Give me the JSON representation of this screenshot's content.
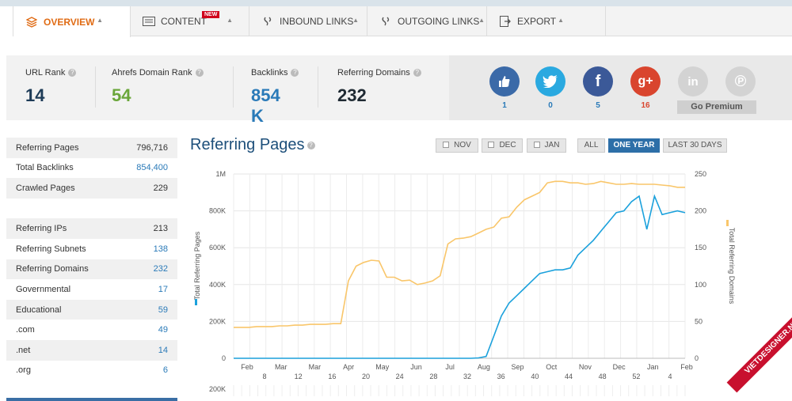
{
  "tabs": [
    {
      "label": "OVERVIEW",
      "icon": "layers-icon",
      "active": true
    },
    {
      "label": "CONTENT",
      "icon": "content-icon",
      "badge": "NEW"
    },
    {
      "label": "INBOUND LINKS",
      "icon": "link-icon"
    },
    {
      "label": "OUTGOING LINKS",
      "icon": "link-icon"
    },
    {
      "label": "EXPORT",
      "icon": "export-icon"
    }
  ],
  "stats": {
    "url_rank": {
      "label": "URL Rank",
      "value": "14"
    },
    "domain_rank": {
      "label": "Ahrefs Domain Rank",
      "value": "54"
    },
    "backlinks": {
      "label": "Backlinks",
      "value": "854 K"
    },
    "ref_domains": {
      "label": "Referring Domains",
      "value": "232"
    }
  },
  "social": [
    {
      "name": "like-icon",
      "count": "1",
      "color": "#3b6aa8"
    },
    {
      "name": "twitter-icon",
      "count": "0",
      "color": "#2aa9e0"
    },
    {
      "name": "facebook-icon",
      "count": "5",
      "color": "#3b5998"
    },
    {
      "name": "googleplus-icon",
      "count": "16",
      "color": "#d9452e"
    },
    {
      "name": "linkedin-icon",
      "count": "",
      "color": "#d3d3d3"
    },
    {
      "name": "pinterest-icon",
      "count": "",
      "color": "#d3d3d3"
    }
  ],
  "premium_label": "Go Premium",
  "sidebar": [
    {
      "label": "Referring Pages",
      "value": "796,716"
    },
    {
      "label": "Total Backlinks",
      "value": "854,400",
      "link": true
    },
    {
      "label": "Crawled Pages",
      "value": "229"
    },
    {
      "label": "",
      "value": ""
    },
    {
      "label": "Referring IPs",
      "value": "213"
    },
    {
      "label": "Referring Subnets",
      "value": "138",
      "link": true
    },
    {
      "label": "Referring Domains",
      "value": "232",
      "link": true
    },
    {
      "label": "Governmental",
      "value": "17",
      "link": true
    },
    {
      "label": "Educational",
      "value": "59",
      "link": true
    },
    {
      "label": ".com",
      "value": "49",
      "link": true
    },
    {
      "label": ".net",
      "value": "14",
      "link": true
    },
    {
      "label": ".org",
      "value": "6",
      "link": true
    }
  ],
  "chart_title": "Referring Pages",
  "filters": {
    "nov": "NOV",
    "dec": "DEC",
    "jan": "JAN",
    "all": "ALL",
    "one_year": "ONE YEAR",
    "last30": "LAST 30 DAYS"
  },
  "watermark": "VIETDESIGNER.NET",
  "chart_data": {
    "type": "line",
    "left_axis_label": "Total Referring Pages",
    "right_axis_label": "Total Referring Domains",
    "left_ticks": [
      "0",
      "200K",
      "400K",
      "600K",
      "800K",
      "1M"
    ],
    "right_ticks": [
      "0",
      "50",
      "100",
      "150",
      "200",
      "250"
    ],
    "month_labels": [
      "Feb",
      "Mar",
      "Mar",
      "Apr",
      "May",
      "Jun",
      "Jul",
      "Aug",
      "Sep",
      "Oct",
      "Nov",
      "Dec",
      "Jan",
      "Feb"
    ],
    "week_labels": [
      "8",
      "12",
      "16",
      "20",
      "24",
      "28",
      "32",
      "36",
      "40",
      "44",
      "48",
      "52",
      "4"
    ],
    "lower_tick": "200K",
    "ylim_left": [
      0,
      1000000
    ],
    "ylim_right": [
      0,
      250
    ],
    "series": [
      {
        "name": "Total Referring Pages",
        "axis": "left",
        "color": "#1ba1dc",
        "values": [
          0,
          0,
          0,
          0,
          0,
          0,
          0,
          0,
          0,
          0,
          0,
          0,
          0,
          0,
          0,
          0,
          0,
          0,
          0,
          0,
          0,
          0,
          0,
          0,
          0,
          0,
          0,
          0,
          0,
          0,
          0,
          0,
          2000,
          10000,
          120000,
          230000,
          300000,
          340000,
          380000,
          420000,
          460000,
          470000,
          480000,
          480000,
          490000,
          560000,
          600000,
          640000,
          690000,
          740000,
          790000,
          800000,
          850000,
          880000,
          700000,
          880000,
          780000,
          790000,
          800000,
          790000
        ]
      },
      {
        "name": "Total Referring Domains",
        "axis": "right",
        "color": "#f9c66a",
        "values": [
          42,
          42,
          42,
          43,
          43,
          43,
          44,
          44,
          45,
          45,
          46,
          46,
          46,
          47,
          47,
          105,
          125,
          130,
          133,
          132,
          110,
          110,
          105,
          106,
          100,
          102,
          105,
          112,
          155,
          162,
          163,
          165,
          170,
          175,
          178,
          190,
          192,
          205,
          215,
          220,
          225,
          238,
          240,
          240,
          238,
          238,
          236,
          237,
          240,
          238,
          236,
          236,
          237,
          236,
          236,
          236,
          235,
          234,
          232,
          232
        ]
      }
    ]
  }
}
